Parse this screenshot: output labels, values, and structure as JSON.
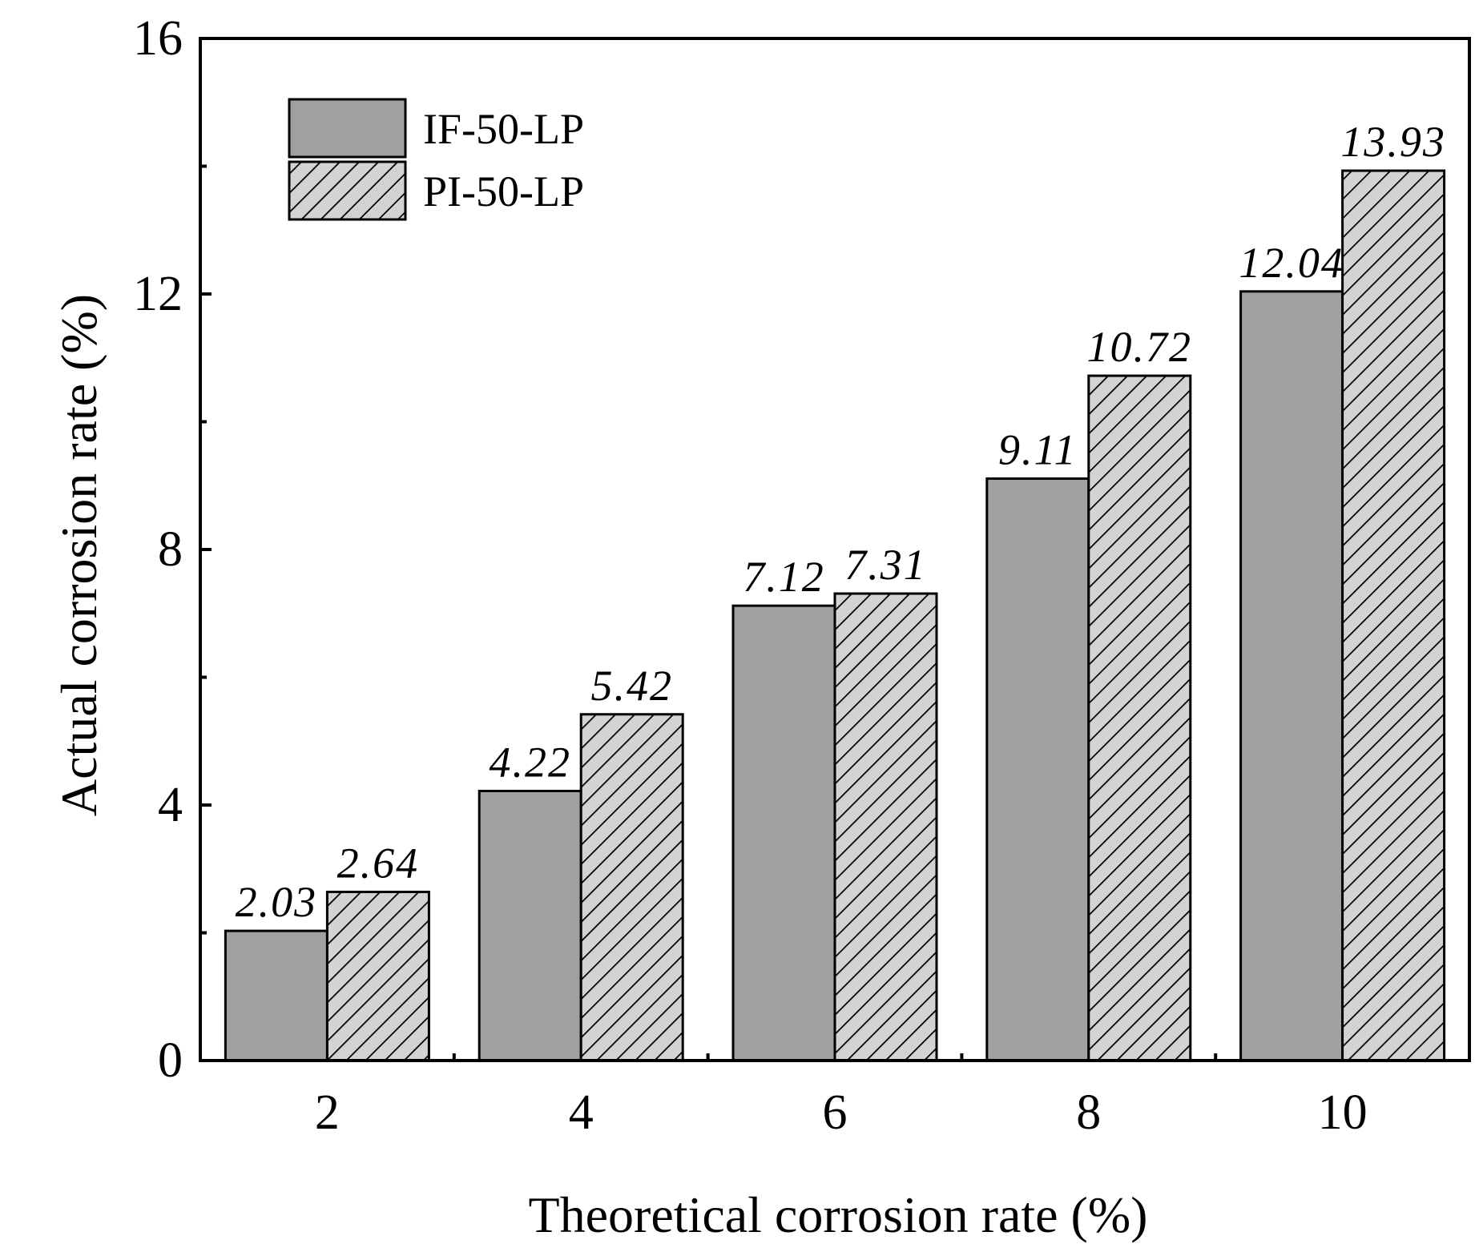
{
  "chart_data": {
    "type": "bar",
    "title": "",
    "xlabel": "Theoretical corrosion rate (%)",
    "ylabel": "Actual corrosion rate (%)",
    "categories": [
      "2",
      "4",
      "6",
      "8",
      "10"
    ],
    "ylim": [
      0,
      16
    ],
    "yticks": [
      0,
      4,
      8,
      12,
      16
    ],
    "grid": false,
    "legend_position": "top-left",
    "series": [
      {
        "name": "IF-50-LP",
        "style": "solid",
        "color": "#a0a0a0",
        "values": [
          2.03,
          4.22,
          7.12,
          9.11,
          12.04
        ],
        "labels": [
          "2.03",
          "4.22",
          "7.12",
          "9.11",
          "12.04"
        ]
      },
      {
        "name": "PI-50-LP",
        "style": "hatched",
        "color": "#d3d3d3",
        "values": [
          2.64,
          5.42,
          7.31,
          10.72,
          13.93
        ],
        "labels": [
          "2.64",
          "5.42",
          "7.31",
          "10.72",
          "13.93"
        ]
      }
    ]
  }
}
